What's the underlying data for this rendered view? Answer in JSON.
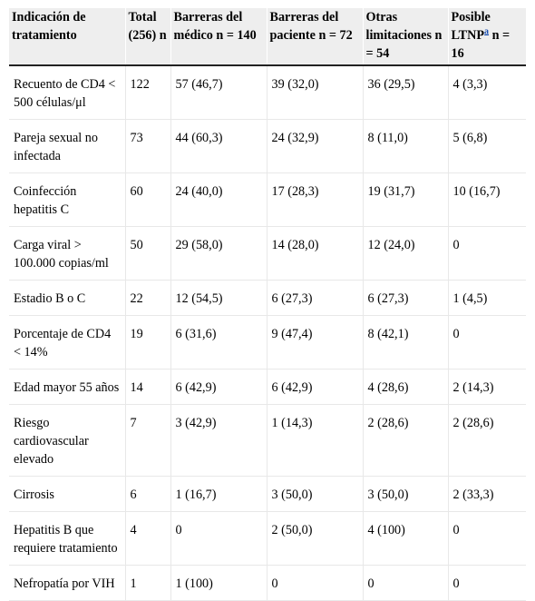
{
  "table": {
    "headers": [
      {
        "text": "Indicación de tratamiento"
      },
      {
        "text": "Total (256) n"
      },
      {
        "text": "Barreras del médico n = 140"
      },
      {
        "text": "Barreras del paciente n = 72"
      },
      {
        "text": "Otras limitaciones n = 54"
      },
      {
        "text": "Posible LTNP",
        "sup": "a",
        "suffix": " n = 16"
      }
    ],
    "rows": [
      [
        "Recuento de CD4 < 500 células/μl",
        "122",
        "57 (46,7)",
        "39 (32,0)",
        "36 (29,5)",
        "4 (3,3)"
      ],
      [
        "Pareja sexual no infectada",
        "73",
        "44 (60,3)",
        "24 (32,9)",
        "8 (11,0)",
        "5 (6,8)"
      ],
      [
        "Coinfección hepatitis C",
        "60",
        "24 (40,0)",
        "17 (28,3)",
        "19 (31,7)",
        "10 (16,7)"
      ],
      [
        "Carga viral > 100.000 copias/ml",
        "50",
        "29 (58,0)",
        "14 (28,0)",
        "12 (24,0)",
        "0"
      ],
      [
        "Estadio B o C",
        "22",
        "12 (54,5)",
        "6 (27,3)",
        "6 (27,3)",
        "1 (4,5)"
      ],
      [
        "Porcentaje de CD4 < 14%",
        "19",
        "6 (31,6)",
        "9 (47,4)",
        "8 (42,1)",
        "0"
      ],
      [
        "Edad mayor 55 años",
        "14",
        "6 (42,9)",
        "6 (42,9)",
        "4 (28,6)",
        "2 (14,3)"
      ],
      [
        "Riesgo cardiovascular elevado",
        "7",
        "3 (42,9)",
        "1 (14,3)",
        "2 (28,6)",
        "2 (28,6)"
      ],
      [
        "Cirrosis",
        "6",
        "1 (16,7)",
        "3 (50,0)",
        "3 (50,0)",
        "2 (33,3)"
      ],
      [
        "Hepatitis B que requiere tratamiento",
        "4",
        "0",
        "2 (50,0)",
        "4 (100)",
        "0"
      ],
      [
        "Nefropatía por VIH",
        "1",
        "1 (100)",
        "0",
        "0",
        "0"
      ]
    ]
  }
}
